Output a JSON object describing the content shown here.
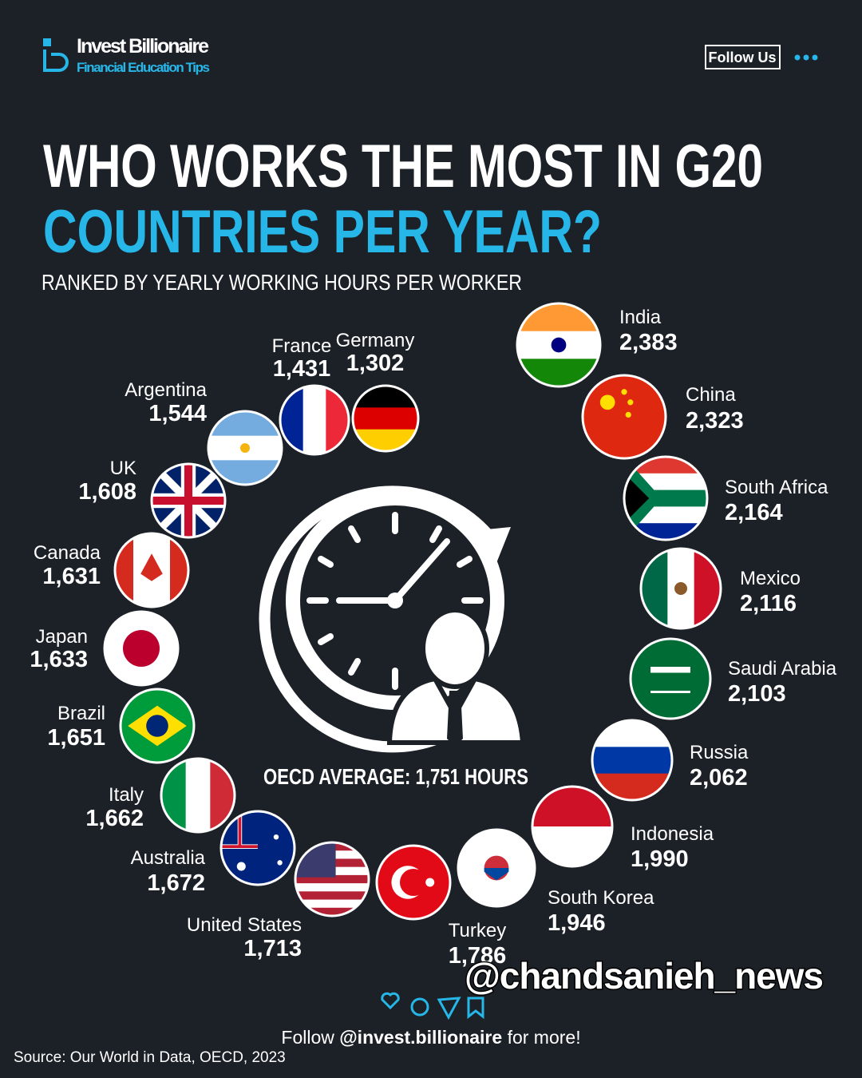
{
  "header": {
    "brand": "Invest Billionaire",
    "tagline": "Financial Education Tips",
    "follow": "Follow Us"
  },
  "title": {
    "line1": "WHO WORKS THE MOST IN G20",
    "line2": "COUNTRIES PER YEAR?",
    "subtitle": "RANKED BY YEARLY WORKING HOURS PER WORKER"
  },
  "countries": [
    {
      "name": "India",
      "hours": "2,383"
    },
    {
      "name": "China",
      "hours": "2,323"
    },
    {
      "name": "South Africa",
      "hours": "2,164"
    },
    {
      "name": "Mexico",
      "hours": "2,116"
    },
    {
      "name": "Saudi Arabia",
      "hours": "2,103"
    },
    {
      "name": "Russia",
      "hours": "2,062"
    },
    {
      "name": "Indonesia",
      "hours": "1,990"
    },
    {
      "name": "South Korea",
      "hours": "1,946"
    },
    {
      "name": "Turkey",
      "hours": "1,786"
    },
    {
      "name": "United States",
      "hours": "1,713"
    },
    {
      "name": "Australia",
      "hours": "1,672"
    },
    {
      "name": "Italy",
      "hours": "1,662"
    },
    {
      "name": "Brazil",
      "hours": "1,651"
    },
    {
      "name": "Japan",
      "hours": "1,633"
    },
    {
      "name": "Canada",
      "hours": "1,631"
    },
    {
      "name": "UK",
      "hours": "1,608"
    },
    {
      "name": "Argentina",
      "hours": "1,544"
    },
    {
      "name": "France",
      "hours": "1,431"
    },
    {
      "name": "Germany",
      "hours": "1,302"
    }
  ],
  "center_label": "OECD AVERAGE: 1,751 HOURS",
  "watermark": "@chandsanieh_news",
  "footer": {
    "follow_prefix": "Follow",
    "handle": "@invest.billionaire",
    "follow_suffix": "for more!",
    "source": "Source: Our World in Data, OECD, 2023"
  }
}
